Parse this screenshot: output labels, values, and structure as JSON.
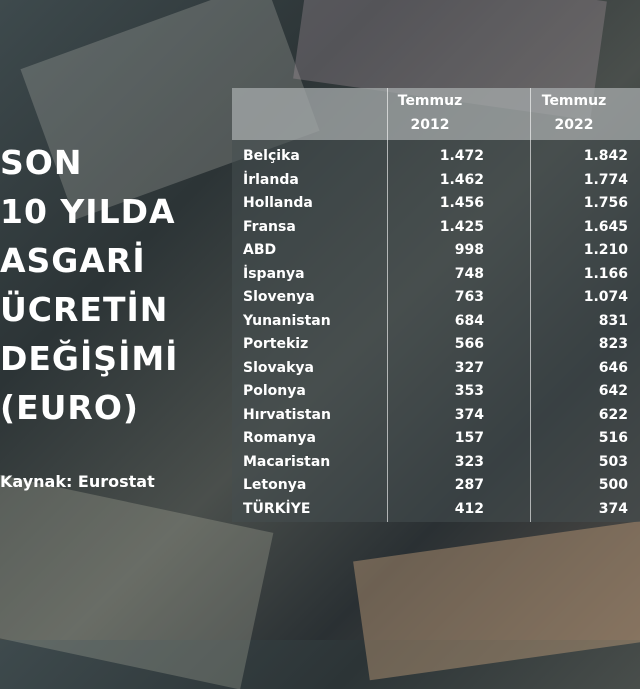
{
  "title_lines": [
    "SON",
    "10 YILDA",
    "ASGARİ",
    "ÜCRETİN",
    "DEĞİŞİMİ",
    "(EURO)"
  ],
  "source": "Kaynak: Eurostat",
  "table": {
    "header": [
      [
        "Temmuz",
        "2012"
      ],
      [
        "Temmuz",
        "2022"
      ]
    ],
    "rows": [
      [
        "Belçika",
        "1.472",
        "1.842"
      ],
      [
        "İrlanda",
        "1.462",
        "1.774"
      ],
      [
        "Hollanda",
        "1.456",
        "1.756"
      ],
      [
        "Fransa",
        "1.425",
        "1.645"
      ],
      [
        "ABD",
        "998",
        "1.210"
      ],
      [
        "İspanya",
        "748",
        "1.166"
      ],
      [
        "Slovenya",
        "763",
        "1.074"
      ],
      [
        "Yunanistan",
        "684",
        "831"
      ],
      [
        "Portekiz",
        "566",
        "823"
      ],
      [
        "Slovakya",
        "327",
        "646"
      ],
      [
        "Polonya",
        "353",
        "642"
      ],
      [
        "Hırvatistan",
        "374",
        "622"
      ],
      [
        "Romanya",
        "157",
        "516"
      ],
      [
        "Macaristan",
        "323",
        "503"
      ],
      [
        "Letonya",
        "287",
        "500"
      ],
      [
        "TÜRKİYE",
        "412",
        "374"
      ]
    ]
  }
}
